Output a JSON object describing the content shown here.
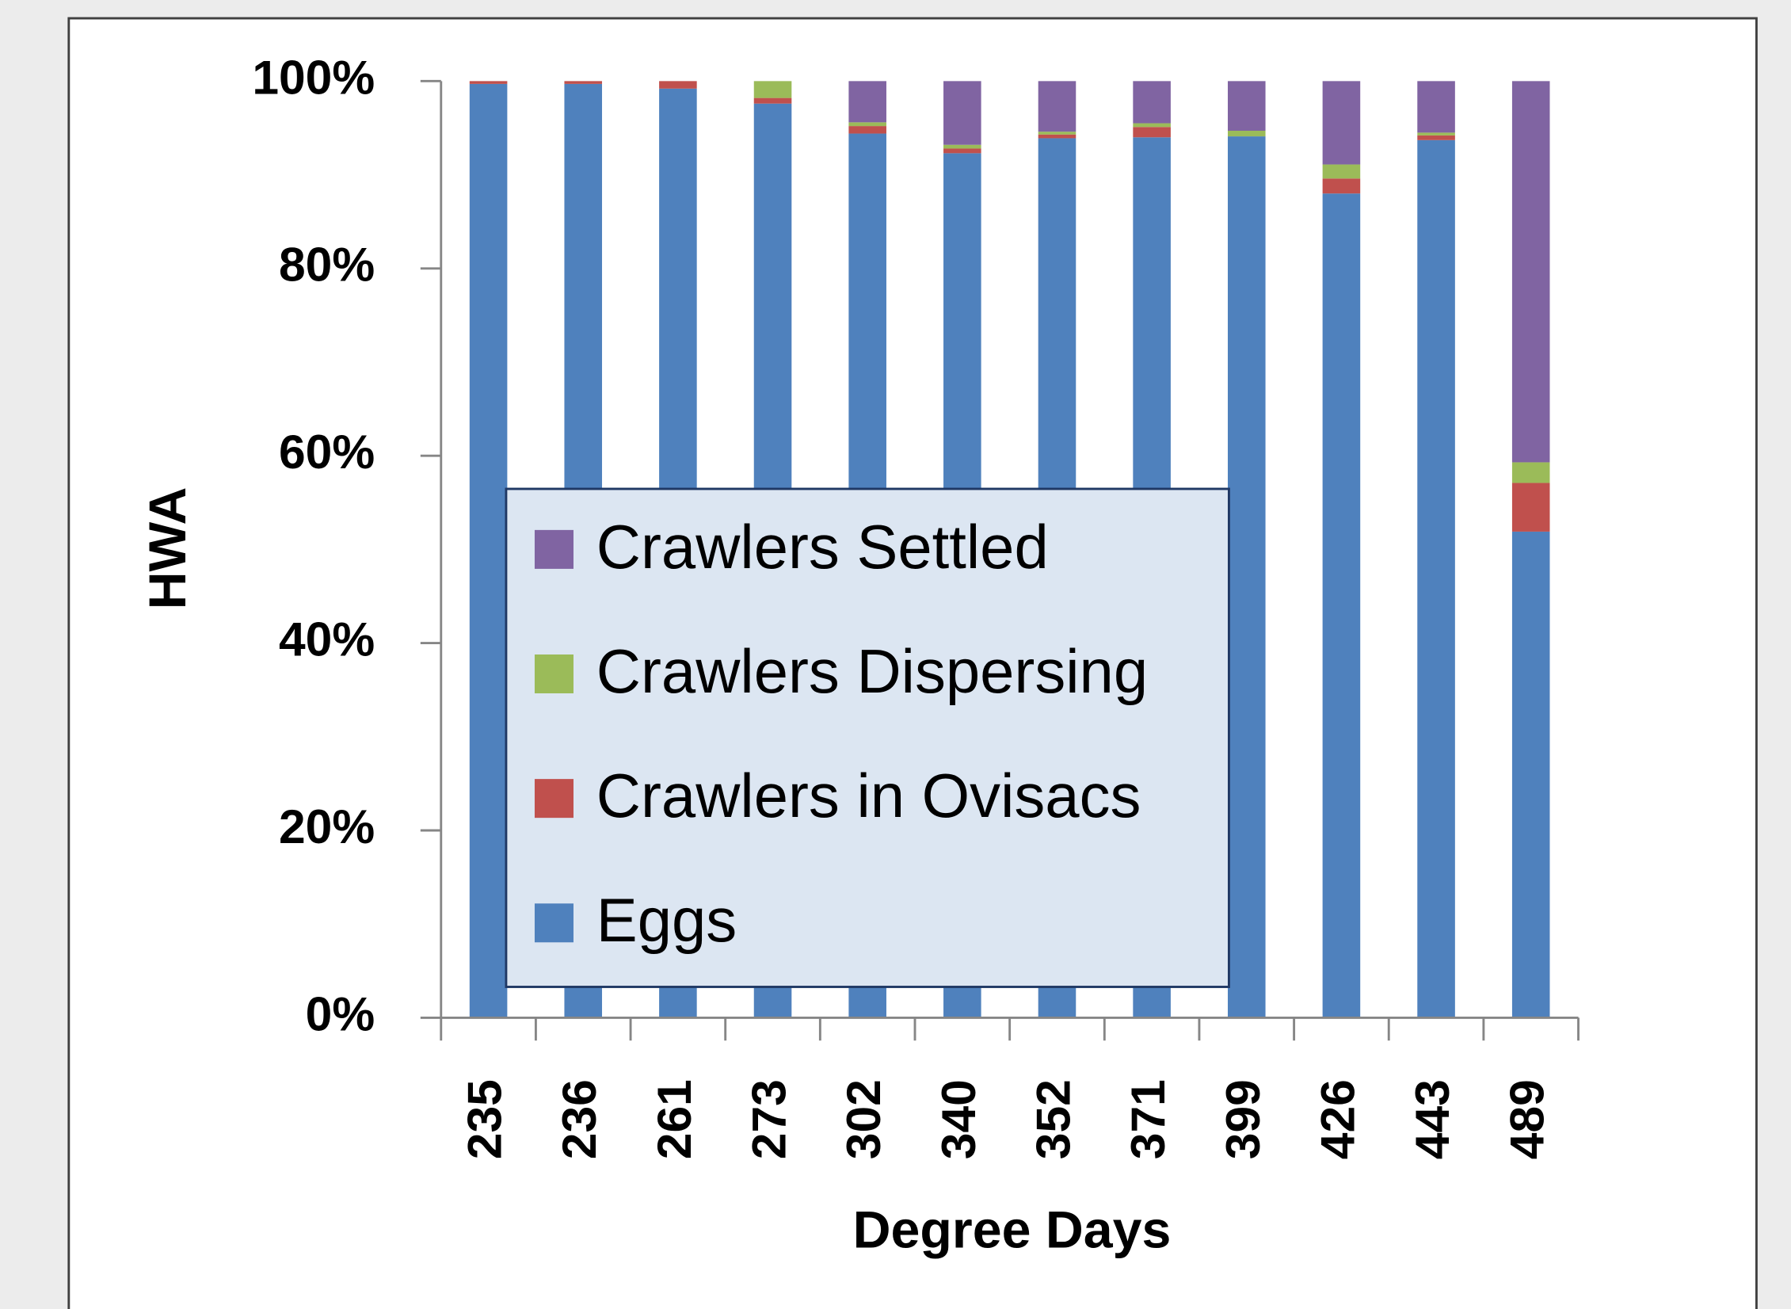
{
  "chart_data": {
    "type": "bar",
    "stacked": true,
    "x_label": "Degree Days",
    "y_label": "HWA",
    "categories": [
      "235",
      "236",
      "261",
      "273",
      "302",
      "340",
      "352",
      "371",
      "399",
      "426",
      "443",
      "489"
    ],
    "series": [
      {
        "name": "Eggs",
        "color": "#4f81bd",
        "values": [
          99.7,
          99.7,
          99.2,
          97.6,
          94.4,
          92.3,
          93.9,
          94.0,
          94.1,
          88.0,
          93.7,
          51.9
        ]
      },
      {
        "name": "Crawlers in Ovisacs",
        "color": "#c0504d",
        "values": [
          0.3,
          0.3,
          0.8,
          0.6,
          0.8,
          0.5,
          0.4,
          1.1,
          0,
          1.6,
          0.5,
          5.2
        ]
      },
      {
        "name": "Crawlers Dispersing",
        "color": "#9bbb59",
        "values": [
          0,
          0,
          0,
          1.8,
          0.4,
          0.4,
          0.3,
          0.4,
          0.6,
          1.5,
          0.3,
          2.2
        ]
      },
      {
        "name": "Crawlers Settled",
        "color": "#8064a2",
        "values": [
          0,
          0,
          0,
          0,
          4.4,
          6.8,
          5.4,
          4.5,
          5.3,
          8.9,
          5.5,
          40.7
        ]
      }
    ],
    "ylim": [
      0,
      100
    ],
    "yticks": [
      {
        "value": 0,
        "label": "0%"
      },
      {
        "value": 20,
        "label": "20%"
      },
      {
        "value": 40,
        "label": "40%"
      },
      {
        "value": 60,
        "label": "60%"
      },
      {
        "value": 80,
        "label": "80%"
      },
      {
        "value": 100,
        "label": "100%"
      }
    ],
    "legend": "inside-left"
  }
}
